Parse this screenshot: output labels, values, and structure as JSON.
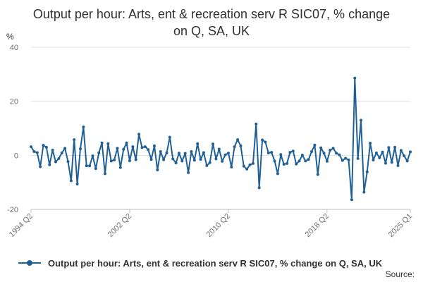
{
  "chart_data": {
    "type": "line",
    "title": "Output per hour: Arts, ent & recreation serv R SIC07, % change on Q, SA, UK",
    "ylabel": "%",
    "xlabel": "",
    "ylim": [
      -20,
      40
    ],
    "yticks": [
      -20,
      0,
      20,
      40
    ],
    "xticks": [
      "1994 Q2",
      "2002 Q2",
      "2010 Q2",
      "2018 Q2",
      "2025 Q1"
    ],
    "grid": "horizontal",
    "legend_position": "bottom",
    "series": [
      {
        "name": "Output per hour: Arts, ent & recreation serv R SIC07, % change on Q, SA, UK",
        "color": "#206095",
        "x_start": "1994 Q2",
        "frequency": "quarterly",
        "values": [
          3.2,
          1.4,
          1.0,
          -4.2,
          3.7,
          3.0,
          -3.5,
          1.9,
          -2.4,
          -1.2,
          0.9,
          2.6,
          -2.3,
          -9.4,
          5.8,
          -10.6,
          2.4,
          10.5,
          -3.9,
          -3.9,
          -0.2,
          -4.9,
          0.9,
          4.6,
          -6.8,
          4.3,
          -2.1,
          -1.7,
          2.6,
          -4.5,
          2.2,
          4.6,
          -2.0,
          3.2,
          -1.6,
          7.8,
          2.9,
          3.2,
          2.1,
          -1.5,
          3.5,
          -5.4,
          1.4,
          -1.6,
          0.9,
          6.7,
          -1.3,
          -2.8,
          0.8,
          -2.1,
          0.7,
          -6.4,
          1.4,
          -1.8,
          4.3,
          -1.5,
          1.0,
          -3.8,
          -2.7,
          4.2,
          -1.3,
          2.3,
          -2.2,
          0.2,
          0.8,
          -4.3,
          3.2,
          5.8,
          3.5,
          -4.0,
          -5.1,
          -3.5,
          -3.0,
          11.6,
          -12.0,
          5.7,
          4.9,
          0.9,
          1.1,
          -2.1,
          -6.8,
          0.3,
          -3.3,
          -3.0,
          1.1,
          1.6,
          -3.2,
          -2.1,
          0.1,
          -2.1,
          -1.5,
          1.4,
          3.8,
          -7.1,
          2.8,
          0.8,
          -2.2,
          1.9,
          2.6,
          0.8,
          0.2,
          -1.9,
          -1.1,
          -1.7,
          -16.4,
          28.6,
          -1.2,
          13.0,
          -13.6,
          -6.1,
          4.5,
          -1.7,
          0.9,
          -0.9,
          1.2,
          -2.9,
          2.9,
          -2.6,
          3.0,
          -3.8,
          1.8,
          -0.2,
          -2.1,
          1.3
        ]
      }
    ]
  },
  "legend": {
    "label": "Output per hour: Arts, ent & recreation serv R SIC07, % change on Q, SA, UK"
  },
  "source": {
    "label": "Source:"
  }
}
